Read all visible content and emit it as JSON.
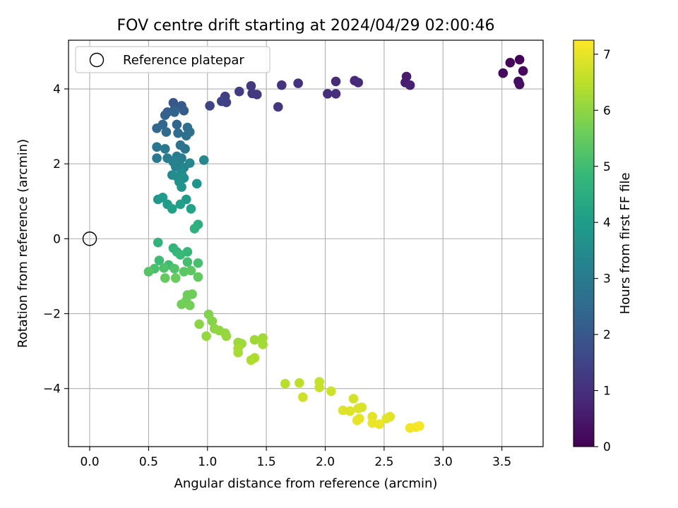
{
  "chart_data": {
    "type": "scatter",
    "title": "FOV centre drift starting at 2024/04/29 02:00:46",
    "xlabel": "Angular distance from reference (arcmin)",
    "ylabel": "Rotation from reference (arcmin)",
    "xlim": [
      -0.18,
      3.85
    ],
    "ylim": [
      -5.55,
      5.3
    ],
    "xticks": [
      0.0,
      0.5,
      1.0,
      1.5,
      2.0,
      2.5,
      3.0,
      3.5
    ],
    "xtick_labels": [
      "0.0",
      "0.5",
      "1.0",
      "1.5",
      "2.0",
      "2.5",
      "3.0",
      "3.5"
    ],
    "yticks": [
      -4,
      -2,
      0,
      2,
      4
    ],
    "ytick_labels": [
      "−4",
      "−2",
      "0",
      "2",
      "4"
    ],
    "grid": true,
    "legend": {
      "placement": "upper-left",
      "entries": [
        "Reference platepar"
      ]
    },
    "reference_point": {
      "x": 0.0,
      "y": 0.0
    },
    "colorbar": {
      "label": "Hours from first FF file",
      "range": [
        0,
        7.25
      ],
      "ticks": [
        0,
        1,
        2,
        3,
        4,
        5,
        6,
        7
      ],
      "tick_labels": [
        "0",
        "1",
        "2",
        "3",
        "4",
        "5",
        "6",
        "7"
      ],
      "colormap": "viridis"
    },
    "colormap_stops": [
      "#440154",
      "#482878",
      "#3e4989",
      "#31688e",
      "#26828e",
      "#1f9e89",
      "#35b779",
      "#6ece58",
      "#b5de2b",
      "#fde725"
    ],
    "points": [
      {
        "x": 3.65,
        "y": 4.78,
        "t": 0.05
      },
      {
        "x": 3.57,
        "y": 4.7,
        "t": 0.1
      },
      {
        "x": 3.68,
        "y": 4.48,
        "t": 0.15
      },
      {
        "x": 3.51,
        "y": 4.42,
        "t": 0.2
      },
      {
        "x": 3.64,
        "y": 4.2,
        "t": 0.25
      },
      {
        "x": 3.65,
        "y": 4.12,
        "t": 0.3
      },
      {
        "x": 2.69,
        "y": 4.33,
        "t": 0.55
      },
      {
        "x": 2.68,
        "y": 4.17,
        "t": 0.6
      },
      {
        "x": 2.72,
        "y": 4.1,
        "t": 0.65
      },
      {
        "x": 2.25,
        "y": 4.22,
        "t": 0.8
      },
      {
        "x": 2.28,
        "y": 4.17,
        "t": 0.85
      },
      {
        "x": 2.09,
        "y": 4.2,
        "t": 0.9
      },
      {
        "x": 2.02,
        "y": 3.87,
        "t": 0.95
      },
      {
        "x": 2.09,
        "y": 3.87,
        "t": 0.98
      },
      {
        "x": 1.77,
        "y": 4.15,
        "t": 1.05
      },
      {
        "x": 1.63,
        "y": 4.1,
        "t": 1.1
      },
      {
        "x": 1.6,
        "y": 3.52,
        "t": 1.15
      },
      {
        "x": 1.37,
        "y": 4.08,
        "t": 1.2
      },
      {
        "x": 1.38,
        "y": 3.88,
        "t": 1.25
      },
      {
        "x": 1.42,
        "y": 3.85,
        "t": 1.28
      },
      {
        "x": 1.27,
        "y": 3.93,
        "t": 1.3
      },
      {
        "x": 1.15,
        "y": 3.8,
        "t": 1.35
      },
      {
        "x": 1.16,
        "y": 3.64,
        "t": 1.4
      },
      {
        "x": 1.12,
        "y": 3.67,
        "t": 1.45
      },
      {
        "x": 1.02,
        "y": 3.55,
        "t": 1.5
      },
      {
        "x": 0.71,
        "y": 3.63,
        "t": 2.0
      },
      {
        "x": 0.78,
        "y": 3.55,
        "t": 2.05
      },
      {
        "x": 0.8,
        "y": 3.42,
        "t": 2.1
      },
      {
        "x": 0.72,
        "y": 3.45,
        "t": 2.15
      },
      {
        "x": 0.66,
        "y": 3.38,
        "t": 2.2
      },
      {
        "x": 0.64,
        "y": 3.3,
        "t": 2.25
      },
      {
        "x": 0.72,
        "y": 3.38,
        "t": 2.3
      },
      {
        "x": 0.74,
        "y": 3.05,
        "t": 2.35
      },
      {
        "x": 0.62,
        "y": 3.05,
        "t": 2.4
      },
      {
        "x": 0.57,
        "y": 2.95,
        "t": 2.45
      },
      {
        "x": 0.65,
        "y": 2.85,
        "t": 2.5
      },
      {
        "x": 0.75,
        "y": 2.82,
        "t": 2.55
      },
      {
        "x": 0.83,
        "y": 2.97,
        "t": 2.6
      },
      {
        "x": 0.85,
        "y": 2.85,
        "t": 2.65
      },
      {
        "x": 0.82,
        "y": 2.75,
        "t": 2.7
      },
      {
        "x": 0.77,
        "y": 2.5,
        "t": 2.75
      },
      {
        "x": 0.81,
        "y": 2.4,
        "t": 2.8
      },
      {
        "x": 0.57,
        "y": 2.45,
        "t": 2.85
      },
      {
        "x": 0.64,
        "y": 2.4,
        "t": 2.9
      },
      {
        "x": 0.57,
        "y": 2.15,
        "t": 2.95
      },
      {
        "x": 0.66,
        "y": 2.15,
        "t": 3.0
      },
      {
        "x": 0.74,
        "y": 2.2,
        "t": 3.05
      },
      {
        "x": 0.78,
        "y": 2.15,
        "t": 3.1
      },
      {
        "x": 0.71,
        "y": 2.05,
        "t": 3.15
      },
      {
        "x": 0.76,
        "y": 2.0,
        "t": 3.2
      },
      {
        "x": 0.73,
        "y": 1.92,
        "t": 3.25
      },
      {
        "x": 0.8,
        "y": 1.9,
        "t": 3.3
      },
      {
        "x": 0.85,
        "y": 2.02,
        "t": 3.35
      },
      {
        "x": 0.97,
        "y": 2.1,
        "t": 3.4
      },
      {
        "x": 0.7,
        "y": 1.7,
        "t": 3.45
      },
      {
        "x": 0.74,
        "y": 1.66,
        "t": 3.5
      },
      {
        "x": 0.78,
        "y": 1.75,
        "t": 3.55
      },
      {
        "x": 0.8,
        "y": 1.62,
        "t": 3.6
      },
      {
        "x": 0.76,
        "y": 1.52,
        "t": 3.65
      },
      {
        "x": 0.78,
        "y": 1.38,
        "t": 3.7
      },
      {
        "x": 0.91,
        "y": 1.47,
        "t": 3.75
      },
      {
        "x": 0.58,
        "y": 1.05,
        "t": 3.85
      },
      {
        "x": 0.62,
        "y": 1.1,
        "t": 3.9
      },
      {
        "x": 0.82,
        "y": 1.05,
        "t": 3.95
      },
      {
        "x": 0.66,
        "y": 0.92,
        "t": 4.0
      },
      {
        "x": 0.77,
        "y": 0.92,
        "t": 4.05
      },
      {
        "x": 0.7,
        "y": 0.8,
        "t": 4.1
      },
      {
        "x": 0.86,
        "y": 0.8,
        "t": 4.15
      },
      {
        "x": 0.92,
        "y": 0.38,
        "t": 4.55
      },
      {
        "x": 0.89,
        "y": 0.27,
        "t": 4.6
      },
      {
        "x": 0.58,
        "y": -0.1,
        "t": 4.7
      },
      {
        "x": 0.71,
        "y": -0.25,
        "t": 4.75
      },
      {
        "x": 0.74,
        "y": -0.35,
        "t": 4.8
      },
      {
        "x": 0.83,
        "y": -0.35,
        "t": 4.85
      },
      {
        "x": 0.77,
        "y": -0.43,
        "t": 4.9
      },
      {
        "x": 0.59,
        "y": -0.58,
        "t": 4.95
      },
      {
        "x": 0.67,
        "y": -0.7,
        "t": 5.0
      },
      {
        "x": 0.83,
        "y": -0.62,
        "t": 5.05
      },
      {
        "x": 0.92,
        "y": -0.65,
        "t": 5.1
      },
      {
        "x": 0.55,
        "y": -0.8,
        "t": 5.15
      },
      {
        "x": 0.63,
        "y": -0.78,
        "t": 5.2
      },
      {
        "x": 0.72,
        "y": -0.8,
        "t": 5.25
      },
      {
        "x": 0.5,
        "y": -0.88,
        "t": 5.3
      },
      {
        "x": 0.8,
        "y": -0.88,
        "t": 5.35
      },
      {
        "x": 0.86,
        "y": -0.85,
        "t": 5.4
      },
      {
        "x": 0.92,
        "y": -1.02,
        "t": 5.45
      },
      {
        "x": 0.64,
        "y": -1.05,
        "t": 5.5
      },
      {
        "x": 0.73,
        "y": -1.05,
        "t": 5.55
      },
      {
        "x": 0.83,
        "y": -1.5,
        "t": 5.6
      },
      {
        "x": 0.87,
        "y": -1.48,
        "t": 5.62
      },
      {
        "x": 0.82,
        "y": -1.65,
        "t": 5.65
      },
      {
        "x": 0.78,
        "y": -1.75,
        "t": 5.68
      },
      {
        "x": 0.85,
        "y": -1.78,
        "t": 5.7
      },
      {
        "x": 1.01,
        "y": -2.02,
        "t": 5.85
      },
      {
        "x": 1.04,
        "y": -2.2,
        "t": 5.9
      },
      {
        "x": 0.93,
        "y": -2.28,
        "t": 5.95
      },
      {
        "x": 1.06,
        "y": -2.4,
        "t": 6.0
      },
      {
        "x": 1.1,
        "y": -2.45,
        "t": 6.02
      },
      {
        "x": 1.15,
        "y": -2.52,
        "t": 6.05
      },
      {
        "x": 0.99,
        "y": -2.6,
        "t": 6.08
      },
      {
        "x": 1.16,
        "y": -2.6,
        "t": 6.1
      },
      {
        "x": 1.26,
        "y": -2.77,
        "t": 6.15
      },
      {
        "x": 1.29,
        "y": -2.8,
        "t": 6.18
      },
      {
        "x": 1.4,
        "y": -2.7,
        "t": 6.2
      },
      {
        "x": 1.47,
        "y": -2.65,
        "t": 6.22
      },
      {
        "x": 1.47,
        "y": -2.82,
        "t": 6.25
      },
      {
        "x": 1.26,
        "y": -2.93,
        "t": 6.28
      },
      {
        "x": 1.26,
        "y": -3.04,
        "t": 6.3
      },
      {
        "x": 1.4,
        "y": -3.18,
        "t": 6.35
      },
      {
        "x": 1.37,
        "y": -3.24,
        "t": 6.38
      },
      {
        "x": 1.66,
        "y": -3.87,
        "t": 6.5
      },
      {
        "x": 1.78,
        "y": -3.85,
        "t": 6.55
      },
      {
        "x": 1.95,
        "y": -3.82,
        "t": 6.6
      },
      {
        "x": 1.95,
        "y": -3.97,
        "t": 6.65
      },
      {
        "x": 2.05,
        "y": -4.07,
        "t": 6.7
      },
      {
        "x": 1.81,
        "y": -4.23,
        "t": 6.72
      },
      {
        "x": 2.24,
        "y": -4.27,
        "t": 6.78
      },
      {
        "x": 2.31,
        "y": -4.5,
        "t": 6.82
      },
      {
        "x": 2.28,
        "y": -4.53,
        "t": 6.85
      },
      {
        "x": 2.15,
        "y": -4.58,
        "t": 6.88
      },
      {
        "x": 2.21,
        "y": -4.6,
        "t": 6.9
      },
      {
        "x": 2.55,
        "y": -4.75,
        "t": 6.92
      },
      {
        "x": 2.52,
        "y": -4.8,
        "t": 6.95
      },
      {
        "x": 2.4,
        "y": -4.75,
        "t": 6.97
      },
      {
        "x": 2.29,
        "y": -4.8,
        "t": 6.98
      },
      {
        "x": 2.27,
        "y": -4.85,
        "t": 7.0
      },
      {
        "x": 2.4,
        "y": -4.92,
        "t": 7.03
      },
      {
        "x": 2.46,
        "y": -4.95,
        "t": 7.05
      },
      {
        "x": 2.72,
        "y": -5.05,
        "t": 7.12
      },
      {
        "x": 2.77,
        "y": -5.03,
        "t": 7.15
      },
      {
        "x": 2.8,
        "y": -5.0,
        "t": 7.18
      }
    ]
  }
}
